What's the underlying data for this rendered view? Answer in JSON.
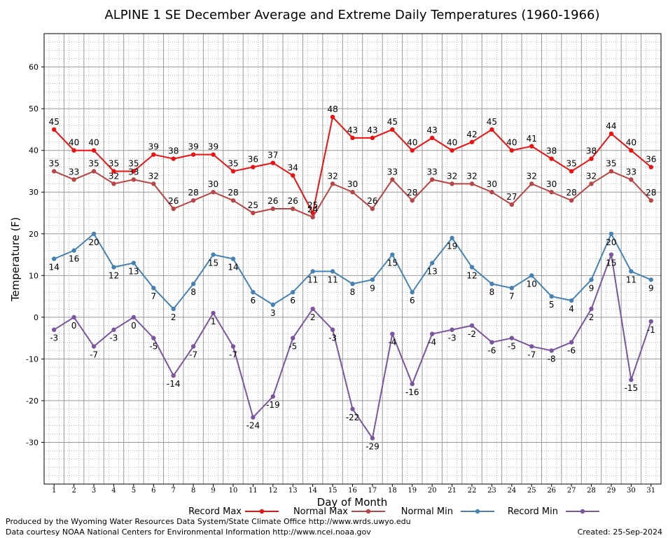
{
  "chart_data": {
    "type": "line",
    "title": "ALPINE 1 SE December Average and Extreme Daily Temperatures (1960-1966)",
    "xlabel": "Day of Month",
    "ylabel": "Temperature (F)",
    "ylim": [
      -40,
      68
    ],
    "yticks": [
      -30,
      -20,
      -10,
      0,
      10,
      20,
      30,
      40,
      50,
      60
    ],
    "x": [
      1,
      2,
      3,
      4,
      5,
      6,
      7,
      8,
      9,
      10,
      11,
      12,
      13,
      14,
      15,
      16,
      17,
      18,
      19,
      20,
      21,
      22,
      23,
      24,
      25,
      26,
      27,
      28,
      29,
      30,
      31
    ],
    "grid": true,
    "legend_position": "bottom",
    "series": [
      {
        "name": "Record Max",
        "color": "#ee1111",
        "label_position": "above",
        "values": [
          45,
          40,
          40,
          35,
          35,
          39,
          38,
          39,
          39,
          35,
          36,
          37,
          34,
          25,
          48,
          43,
          43,
          45,
          40,
          43,
          40,
          42,
          45,
          40,
          41,
          38,
          35,
          38,
          44,
          40,
          36
        ]
      },
      {
        "name": "Normal Max",
        "color": "#bb4444",
        "label_position": "above",
        "values": [
          35,
          33,
          35,
          32,
          33,
          32,
          26,
          28,
          30,
          28,
          25,
          26,
          26,
          24,
          32,
          30,
          26,
          33,
          28,
          33,
          32,
          32,
          30,
          27,
          32,
          30,
          28,
          32,
          35,
          33,
          28
        ]
      },
      {
        "name": "Normal Min",
        "color": "#4682b4",
        "label_position": "below",
        "values": [
          14,
          16,
          20,
          12,
          13,
          7,
          2,
          8,
          15,
          14,
          6,
          3,
          6,
          11,
          11,
          8,
          9,
          15,
          6,
          13,
          19,
          12,
          8,
          7,
          10,
          5,
          4,
          9,
          20,
          11,
          9
        ]
      },
      {
        "name": "Record Min",
        "color": "#7b55a0",
        "label_position": "below",
        "values": [
          -3,
          0,
          -7,
          -3,
          0,
          -5,
          -14,
          -7,
          1,
          -7,
          -24,
          -19,
          -5,
          2,
          -3,
          -22,
          -29,
          -4,
          -16,
          -4,
          -3,
          -2,
          -6,
          -5,
          -7,
          -8,
          -6,
          2,
          15,
          -15,
          -1
        ]
      }
    ]
  },
  "footer": {
    "produced_by": "Produced by the Wyoming Water Resources Data System/State Climate Office http://www.wrds.uwyo.edu",
    "courtesy": "Data courtesy NOAA National Centers for Environmental Information http://www.ncei.noaa.gov",
    "created": "Created:  25-Sep-2024"
  }
}
